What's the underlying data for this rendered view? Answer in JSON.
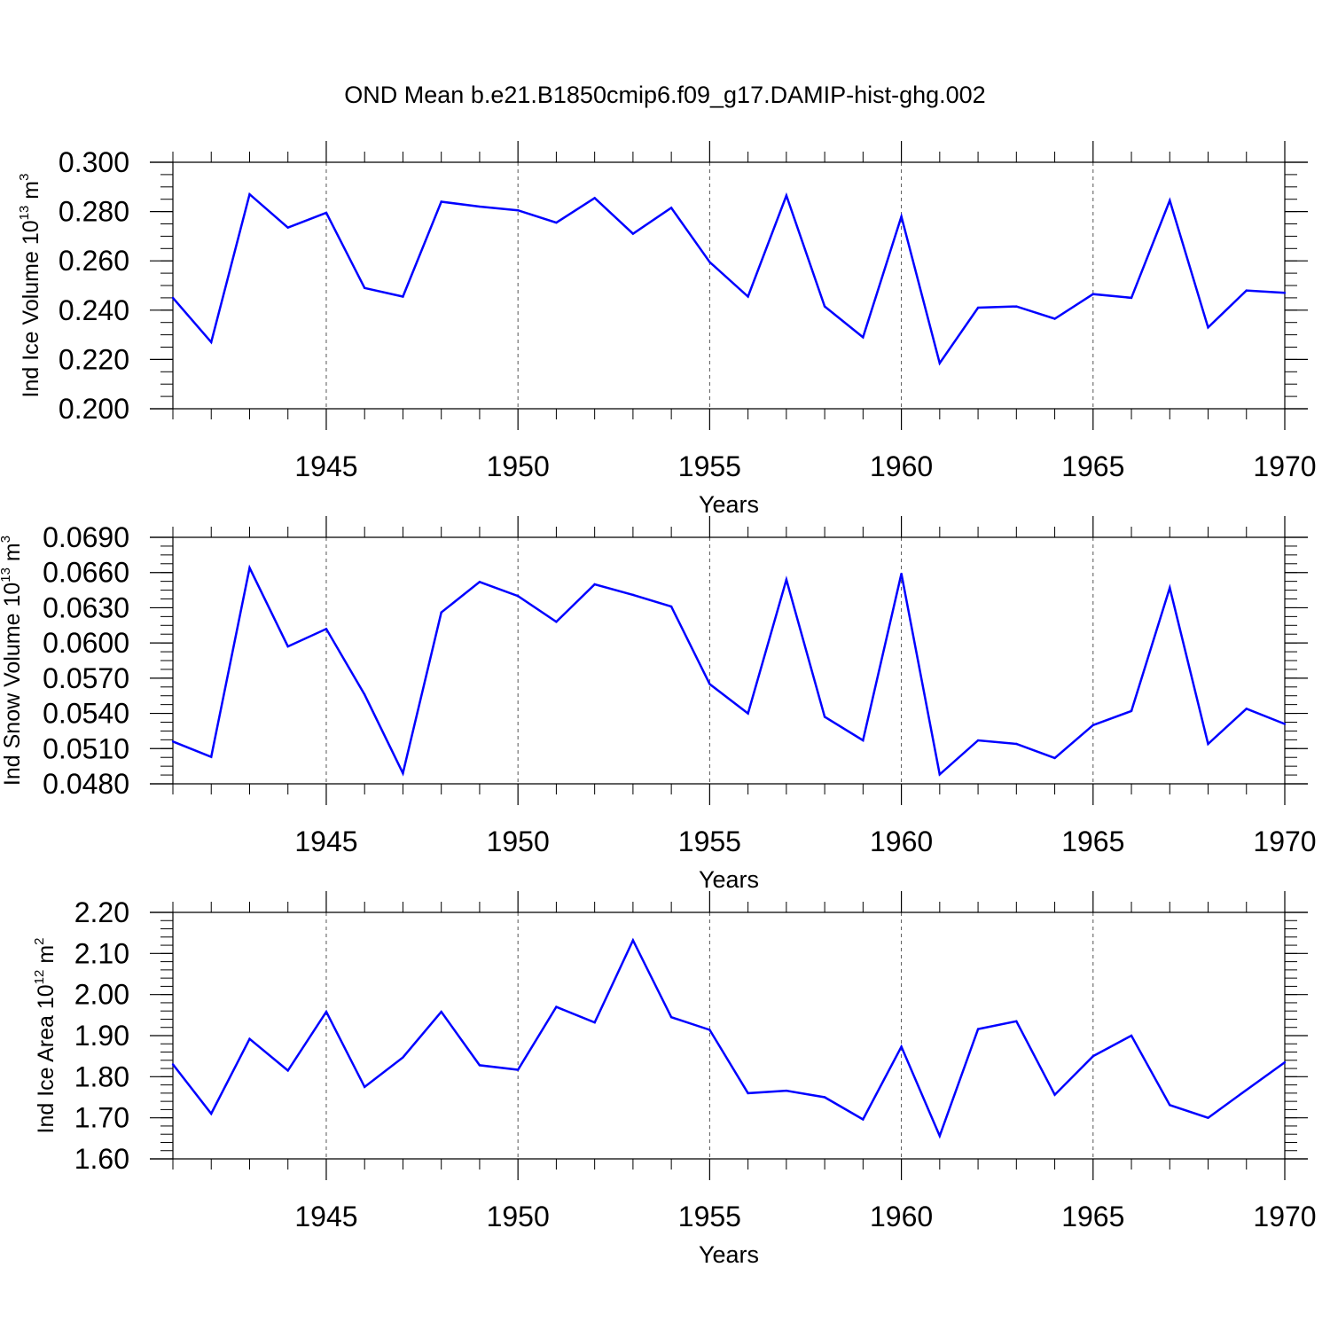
{
  "title": "OND Mean b.e21.B1850cmip6.f09_g17.DAMIP-hist-ghg.002",
  "colors": {
    "series": "#0000ff",
    "axis": "#000000",
    "grid": "#555555"
  },
  "chart_data": [
    {
      "type": "line",
      "title": "OND Mean b.e21.B1850cmip6.f09_g17.DAMIP-hist-ghg.002",
      "ylabel_main": "Ind Ice Volume 10",
      "ylabel_exp": "13",
      "ylabel_unit": "m",
      "ylabel_unit_exp": "3",
      "xlabel": "Years",
      "xlim": [
        1941,
        1970
      ],
      "ylim": [
        0.2,
        0.3
      ],
      "grid": "vertical dashed at major x ticks",
      "xticks": [
        1945,
        1950,
        1955,
        1960,
        1965,
        1970
      ],
      "xtick_labels": [
        "1945",
        "1950",
        "1955",
        "1960",
        "1965",
        "1970"
      ],
      "yticks": [
        0.2,
        0.22,
        0.24,
        0.26,
        0.28,
        0.3
      ],
      "ytick_labels": [
        "0.200",
        "0.220",
        "0.240",
        "0.260",
        "0.280",
        "0.300"
      ],
      "y_minor_step": 0.005,
      "x": [
        1941,
        1942,
        1943,
        1944,
        1945,
        1946,
        1947,
        1948,
        1949,
        1950,
        1951,
        1952,
        1953,
        1954,
        1955,
        1956,
        1957,
        1958,
        1959,
        1960,
        1961,
        1962,
        1963,
        1964,
        1965,
        1966,
        1967,
        1968,
        1969,
        1970
      ],
      "values": [
        0.245,
        0.227,
        0.287,
        0.2735,
        0.2795,
        0.249,
        0.2455,
        0.284,
        0.282,
        0.2805,
        0.2755,
        0.2855,
        0.271,
        0.2815,
        0.2595,
        0.2455,
        0.2865,
        0.2415,
        0.229,
        0.278,
        0.2185,
        0.241,
        0.2415,
        0.2365,
        0.2465,
        0.245,
        0.2845,
        0.233,
        0.248,
        0.247
      ]
    },
    {
      "type": "line",
      "ylabel_main": "Ind Snow Volume 10",
      "ylabel_exp": "13",
      "ylabel_unit": "m",
      "ylabel_unit_exp": "3",
      "xlabel": "Years",
      "xlim": [
        1941,
        1970
      ],
      "ylim": [
        0.048,
        0.069
      ],
      "grid": "vertical dashed at major x ticks",
      "xticks": [
        1945,
        1950,
        1955,
        1960,
        1965,
        1970
      ],
      "xtick_labels": [
        "1945",
        "1950",
        "1955",
        "1960",
        "1965",
        "1970"
      ],
      "yticks": [
        0.048,
        0.051,
        0.054,
        0.057,
        0.06,
        0.063,
        0.066,
        0.069
      ],
      "ytick_labels": [
        "0.0480",
        "0.0510",
        "0.0540",
        "0.0570",
        "0.0600",
        "0.0630",
        "0.0660",
        "0.0690"
      ],
      "y_minor_step": 0.00075,
      "x": [
        1941,
        1942,
        1943,
        1944,
        1945,
        1946,
        1947,
        1948,
        1949,
        1950,
        1951,
        1952,
        1953,
        1954,
        1955,
        1956,
        1957,
        1958,
        1959,
        1960,
        1961,
        1962,
        1963,
        1964,
        1965,
        1966,
        1967,
        1968,
        1969,
        1970
      ],
      "values": [
        0.0516,
        0.0503,
        0.0664,
        0.0597,
        0.0612,
        0.0556,
        0.0489,
        0.0626,
        0.0652,
        0.064,
        0.0618,
        0.065,
        0.0641,
        0.0631,
        0.0565,
        0.054,
        0.0654,
        0.0537,
        0.0517,
        0.0659,
        0.0488,
        0.0517,
        0.0514,
        0.0502,
        0.053,
        0.0542,
        0.0647,
        0.0514,
        0.0544,
        0.0531
      ]
    },
    {
      "type": "line",
      "ylabel_main": "Ind Ice Area 10",
      "ylabel_exp": "12",
      "ylabel_unit": "m",
      "ylabel_unit_exp": "2",
      "xlabel": "Years",
      "xlim": [
        1941,
        1970
      ],
      "ylim": [
        1.6,
        2.2
      ],
      "grid": "vertical dashed at major x ticks",
      "xticks": [
        1945,
        1950,
        1955,
        1960,
        1965,
        1970
      ],
      "xtick_labels": [
        "1945",
        "1950",
        "1955",
        "1960",
        "1965",
        "1970"
      ],
      "yticks": [
        1.6,
        1.7,
        1.8,
        1.9,
        2.0,
        2.1,
        2.2
      ],
      "ytick_labels": [
        "1.60",
        "1.70",
        "1.80",
        "1.90",
        "2.00",
        "2.10",
        "2.20"
      ],
      "y_minor_step": 0.02,
      "x": [
        1941,
        1942,
        1943,
        1944,
        1945,
        1946,
        1947,
        1948,
        1949,
        1950,
        1951,
        1952,
        1953,
        1954,
        1955,
        1956,
        1957,
        1958,
        1959,
        1960,
        1961,
        1962,
        1963,
        1964,
        1965,
        1966,
        1967,
        1968,
        1969,
        1970
      ],
      "values": [
        1.83,
        1.71,
        1.892,
        1.815,
        1.958,
        1.775,
        1.847,
        1.958,
        1.828,
        1.817,
        1.97,
        1.932,
        2.132,
        1.945,
        1.914,
        1.76,
        1.766,
        1.75,
        1.696,
        1.873,
        1.656,
        1.916,
        1.935,
        1.756,
        1.85,
        1.9,
        1.731,
        1.7,
        1.768,
        1.835
      ]
    }
  ]
}
